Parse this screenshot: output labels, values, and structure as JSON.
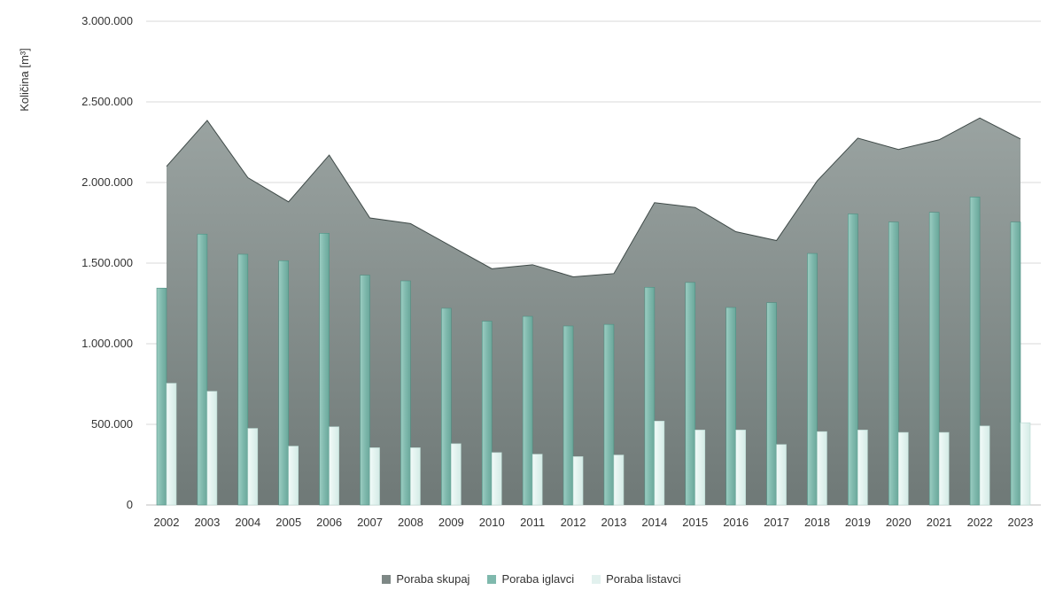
{
  "chart_data": {
    "type": "bar",
    "subtype": "bar-with-area",
    "title": "",
    "xlabel": "",
    "ylabel": "Količina [m³]",
    "ylim": [
      0,
      3000000
    ],
    "yticks": [
      0,
      500000,
      1000000,
      1500000,
      2000000,
      2500000,
      3000000
    ],
    "ytick_labels": [
      "0",
      "500.000",
      "1.000.000",
      "1.500.000",
      "2.000.000",
      "2.500.000",
      "3.000.000"
    ],
    "grid": "horizontal",
    "legend_position": "bottom",
    "categories": [
      "2002",
      "2003",
      "2004",
      "2005",
      "2006",
      "2007",
      "2008",
      "2009",
      "2010",
      "2011",
      "2012",
      "2013",
      "2014",
      "2015",
      "2016",
      "2017",
      "2018",
      "2019",
      "2020",
      "2021",
      "2022",
      "2023"
    ],
    "series": [
      {
        "name": "Poraba skupaj",
        "kind": "area",
        "color": "#8d9694",
        "values": [
          2100000,
          2385000,
          2030000,
          1880000,
          2170000,
          1780000,
          1745000,
          1605000,
          1465000,
          1490000,
          1415000,
          1435000,
          1875000,
          1845000,
          1695000,
          1640000,
          2010000,
          2275000,
          2205000,
          2265000,
          2400000,
          2270000
        ]
      },
      {
        "name": "Poraba iglavci",
        "kind": "bar",
        "color": "#7fb9ad",
        "values": [
          1345000,
          1680000,
          1555000,
          1515000,
          1685000,
          1425000,
          1390000,
          1220000,
          1140000,
          1170000,
          1110000,
          1120000,
          1350000,
          1380000,
          1225000,
          1255000,
          1560000,
          1805000,
          1755000,
          1815000,
          1910000,
          1755000
        ]
      },
      {
        "name": "Poraba listavci",
        "kind": "bar",
        "color": "#e2f1ee",
        "values": [
          755000,
          705000,
          475000,
          365000,
          485000,
          355000,
          355000,
          380000,
          325000,
          315000,
          300000,
          310000,
          520000,
          465000,
          465000,
          375000,
          455000,
          465000,
          450000,
          450000,
          490000,
          510000
        ]
      }
    ]
  }
}
